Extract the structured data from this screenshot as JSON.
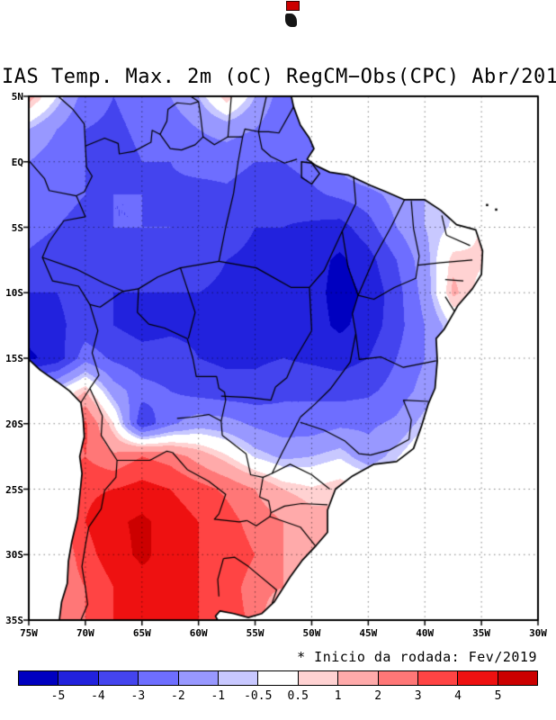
{
  "page": {
    "background": "#ffffff"
  },
  "header": {
    "title": "IAS Temp. Max. 2m (oC) RegCM−Obs(CPC) Abr/201"
  },
  "top_icon": {
    "red": "#cc0000",
    "black": "#151515"
  },
  "axes": {
    "lat_labels": [
      "5N",
      "EQ",
      "5S",
      "10S",
      "15S",
      "20S",
      "25S",
      "30S",
      "35S"
    ],
    "lat_values": [
      5,
      0,
      -5,
      -10,
      -15,
      -20,
      -25,
      -30,
      -35
    ],
    "lon_labels": [
      "75W",
      "70W",
      "65W",
      "60W",
      "55W",
      "50W",
      "45W",
      "40W",
      "35W",
      "30W"
    ],
    "lon_values": [
      -75,
      -70,
      -65,
      -60,
      -55,
      -50,
      -45,
      -40,
      -35,
      -30
    ]
  },
  "footnote": {
    "text": "* Inicio da rodada: Fev/2019"
  },
  "colorbar": {
    "tick_labels": [
      "-5",
      "-4",
      "-3",
      "-2",
      "-1",
      "-0.5",
      "0.5",
      "1",
      "2",
      "3",
      "4",
      "5"
    ]
  },
  "chart_data": {
    "type": "heatmap",
    "title": "IAS Temp. Max. 2m (oC) RegCM−Obs(CPC) Abr/201",
    "units": "oC",
    "xlabel": "",
    "ylabel": "",
    "xlim": [
      -75,
      -30
    ],
    "ylim": [
      -35,
      5
    ],
    "grid": true,
    "legend_position": "bottom",
    "annotations": [
      "* Inicio da rodada: Fev/2019"
    ],
    "x": [
      -75,
      -72.5,
      -70,
      -67.5,
      -65,
      -62.5,
      -60,
      -57.5,
      -55,
      -52.5,
      -50,
      -47.5,
      -45,
      -42.5,
      -40,
      -37.5,
      -35,
      -32.5,
      -30
    ],
    "y": [
      5,
      2.5,
      0,
      -2.5,
      -5,
      -7.5,
      -10,
      -12.5,
      -15,
      -17.5,
      -20,
      -22.5,
      -25,
      -27.5,
      -30,
      -32.5,
      -35
    ],
    "values": [
      [
        1.5,
        -0.5,
        -2.5,
        -3.0,
        -2.6,
        -2.0,
        -1.0,
        1.0,
        -1.0,
        -2.6,
        -2.0,
        -1.0,
        0,
        0,
        0,
        0,
        0,
        0,
        0
      ],
      [
        -1.0,
        -2.0,
        -3.0,
        -3.2,
        -2.8,
        -2.6,
        -2.0,
        -1.6,
        -2.0,
        -2.8,
        -2.2,
        -1.0,
        0,
        0,
        0,
        0,
        0,
        0,
        0
      ],
      [
        -2.0,
        -2.6,
        -3.0,
        -3.4,
        -3.0,
        -3.0,
        -2.6,
        -2.6,
        -3.0,
        -3.0,
        -2.6,
        -1.6,
        -0.5,
        0,
        0,
        0,
        0,
        0,
        0
      ],
      [
        -2.0,
        -2.6,
        -3.0,
        -3.0,
        -3.0,
        -3.2,
        -3.4,
        -3.2,
        -3.6,
        -3.6,
        -3.2,
        -2.8,
        -2.4,
        -1.6,
        -1.0,
        -0.6,
        -1.0,
        0,
        0
      ],
      [
        -2.6,
        -3.0,
        -3.4,
        -3.0,
        -3.0,
        -3.0,
        -3.2,
        -3.6,
        -4.0,
        -4.0,
        -4.2,
        -4.4,
        -3.4,
        -2.0,
        -1.0,
        -0.4,
        0.6,
        0,
        0
      ],
      [
        -3.2,
        -3.6,
        -3.0,
        -3.0,
        -3.4,
        -3.6,
        -3.6,
        -4.0,
        -4.2,
        -4.2,
        -4.6,
        -5.2,
        -4.4,
        -3.0,
        -1.4,
        0.8,
        0.6,
        0,
        0
      ],
      [
        -4.0,
        -4.0,
        -3.6,
        -4.0,
        -4.0,
        -4.0,
        -4.0,
        -4.2,
        -4.4,
        -4.4,
        -4.6,
        -5.4,
        -4.8,
        -3.4,
        -1.6,
        1.2,
        0.2,
        0,
        0
      ],
      [
        -4.6,
        -4.2,
        -3.6,
        -4.0,
        -4.4,
        -4.2,
        -4.2,
        -4.4,
        -4.6,
        -4.4,
        -4.6,
        -5.2,
        -4.6,
        -3.4,
        -2.0,
        -0.4,
        0.6,
        0,
        0
      ],
      [
        -5.2,
        -4.6,
        -2.4,
        -3.2,
        -3.6,
        -3.6,
        -4.0,
        -4.2,
        -4.2,
        -4.0,
        -4.2,
        -4.4,
        -4.0,
        -3.0,
        -2.0,
        -1.0,
        0,
        0,
        0
      ],
      [
        -1.5,
        -0.5,
        1.0,
        -1.5,
        -2.6,
        -3.0,
        -3.4,
        -3.6,
        -3.6,
        -3.2,
        -3.2,
        -3.4,
        -3.2,
        -2.6,
        -1.6,
        -0.5,
        0,
        0,
        0
      ],
      [
        0,
        2.0,
        3.2,
        0.5,
        -3.8,
        -2.2,
        -1.4,
        -1.6,
        -2.2,
        -2.6,
        -2.6,
        -2.2,
        -2.2,
        -1.8,
        -0.6,
        0,
        0,
        0,
        0
      ],
      [
        0,
        2.5,
        3.0,
        2.2,
        3.0,
        2.6,
        1.6,
        0.6,
        -0.6,
        -1.2,
        -1.0,
        -0.6,
        -1.6,
        -0.6,
        0.6,
        0,
        0,
        0,
        0
      ],
      [
        0,
        2.0,
        3.8,
        4.0,
        4.4,
        4.0,
        3.4,
        2.8,
        2.0,
        1.0,
        0.6,
        1.0,
        0.6,
        0.5,
        0,
        0,
        0,
        0,
        0
      ],
      [
        0,
        2.5,
        4.0,
        4.8,
        5.2,
        4.6,
        4.0,
        3.4,
        2.6,
        2.0,
        1.4,
        1.0,
        0,
        0,
        0,
        0,
        0,
        0,
        0
      ],
      [
        0,
        2.0,
        3.6,
        4.6,
        5.2,
        4.6,
        4.0,
        3.6,
        3.0,
        2.0,
        1.4,
        0,
        0,
        0,
        0,
        0,
        0,
        0,
        0
      ],
      [
        0,
        2.2,
        3.0,
        4.0,
        4.6,
        5.0,
        4.0,
        3.4,
        2.6,
        2.0,
        0,
        0,
        0,
        0,
        0,
        0,
        0,
        0,
        0
      ],
      [
        0,
        2.0,
        3.0,
        4.0,
        4.4,
        4.4,
        4.0,
        3.4,
        2.8,
        0,
        0,
        0,
        0,
        0,
        0,
        0,
        0,
        0,
        0
      ]
    ],
    "levels": [
      -5,
      -4,
      -3,
      -2,
      -1,
      -0.5,
      0.5,
      1,
      2,
      3,
      4,
      5
    ],
    "palette": [
      "#0000c0",
      "#2222dd",
      "#4444ee",
      "#6e6eff",
      "#9898ff",
      "#c8c8ff",
      "#ffffff",
      "#ffd2d2",
      "#ffaaaa",
      "#ff7777",
      "#ff4444",
      "#ee1111",
      "#cc0000"
    ]
  }
}
